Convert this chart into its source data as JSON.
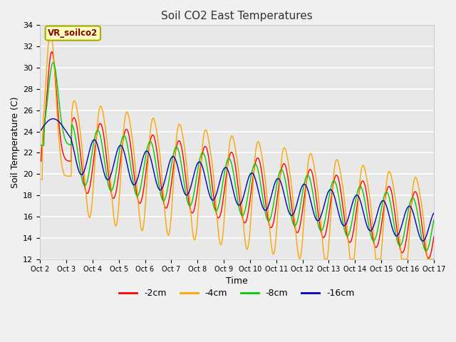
{
  "title": "Soil CO2 East Temperatures",
  "xlabel": "Time",
  "ylabel": "Soil Temperature (C)",
  "ylim": [
    12,
    34
  ],
  "annotation_text": "VR_soilco2",
  "colors": {
    "2cm": "#ff0000",
    "4cm": "#ffa500",
    "8cm": "#00cc00",
    "16cm": "#0000bb"
  },
  "legend_labels": [
    "-2cm",
    "-4cm",
    "-8cm",
    "-16cm"
  ],
  "fig_bg_color": "#f0f0f0",
  "plot_bg_color": "#e8e8e8",
  "x_tick_labels": [
    "Oct 2",
    "Oct 3",
    "Oct 4",
    "Oct 5",
    "Oct 6",
    "Oct 7",
    "Oct 8",
    "Oct 9",
    "Oct 10",
    "Oct 11",
    "Oct 12",
    "Oct 13",
    "Oct 14",
    "Oct 15",
    "Oct 16",
    "Oct 17"
  ],
  "yticks": [
    12,
    14,
    16,
    18,
    20,
    22,
    24,
    26,
    28,
    30,
    32,
    34
  ],
  "num_points": 721
}
